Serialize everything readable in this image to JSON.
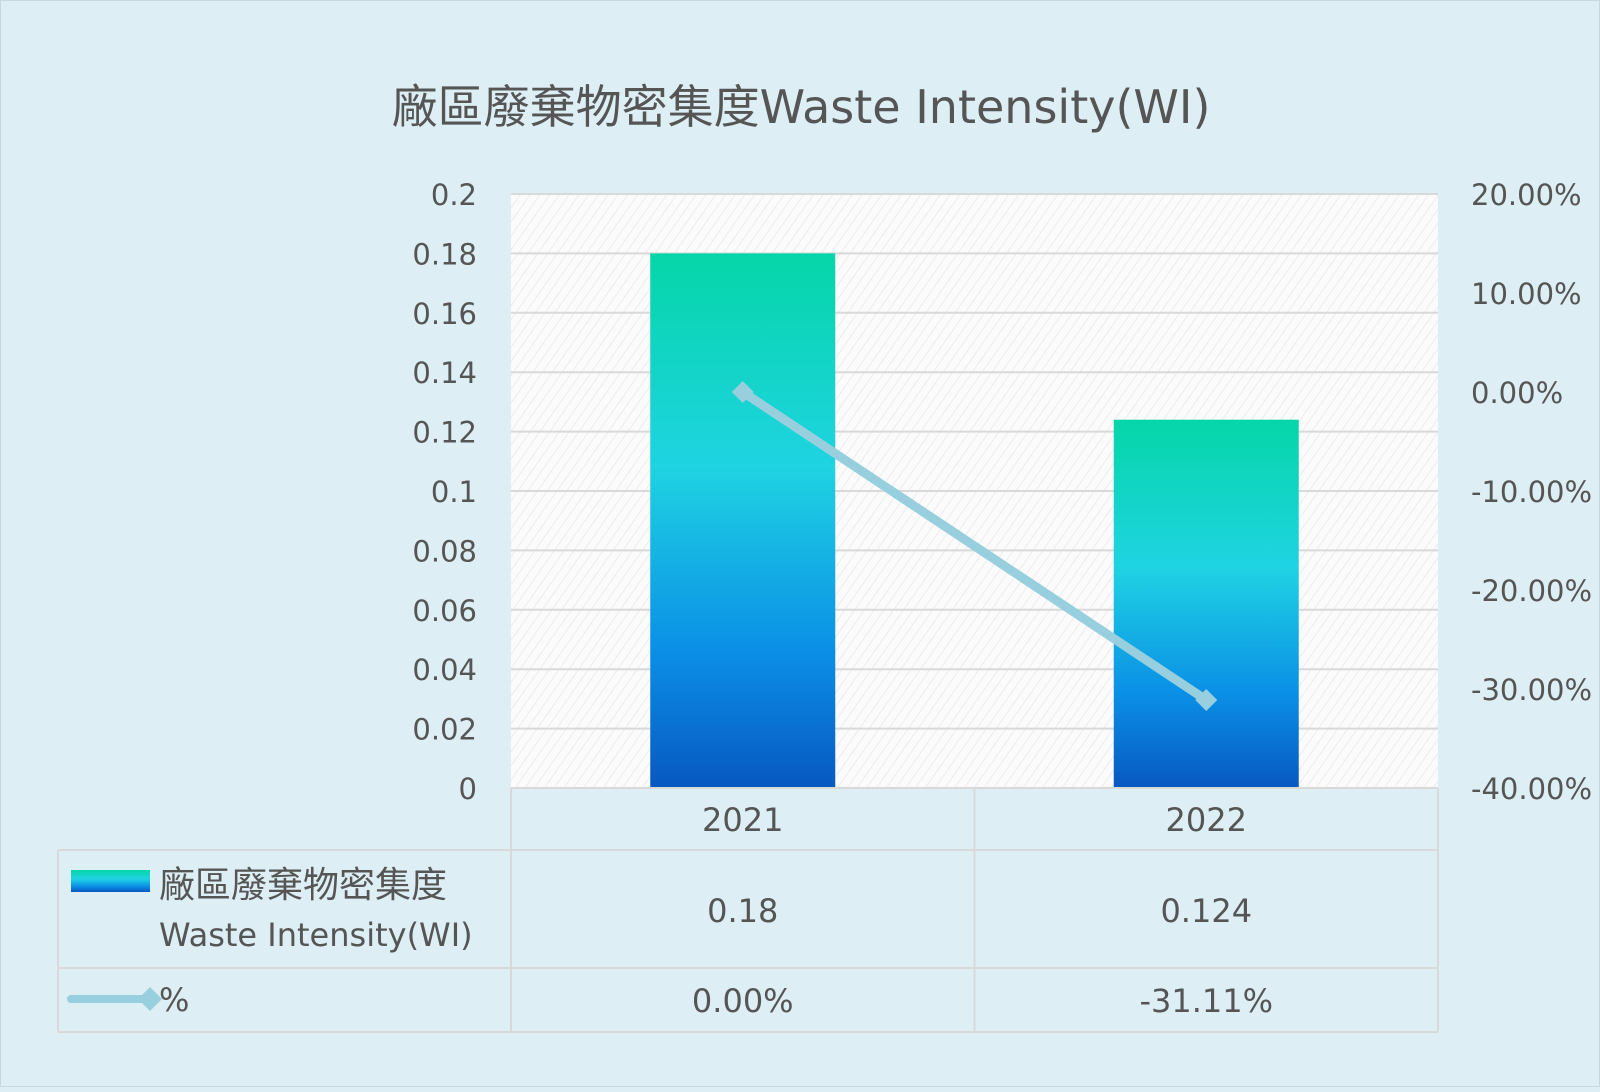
{
  "chart_data": {
    "type": "bar",
    "title": "廠區廢棄物密集度Waste Intensity(WI)",
    "categories": [
      "2021",
      "2022"
    ],
    "series": [
      {
        "name": "廠區廢棄物密集度 Waste Intensity(WI)",
        "name_lines": [
          "廠區廢棄物密集度",
          "Waste Intensity(WI)"
        ],
        "type": "bar",
        "axis": "left",
        "values": [
          0.18,
          0.124
        ],
        "value_labels": [
          "0.18",
          "0.124"
        ],
        "color_top": "#05d6a8",
        "color_mid": "#1fd3e2",
        "color_bottom": "#0858c0"
      },
      {
        "name": "%",
        "type": "line",
        "axis": "right",
        "values": [
          0.0,
          -31.11
        ],
        "value_labels": [
          "0.00%",
          "-31.11%"
        ],
        "color": "#97cfde"
      }
    ],
    "y_left": {
      "min": 0,
      "max": 0.2,
      "step": 0.02,
      "tick_labels": [
        "0",
        "0.02",
        "0.04",
        "0.06",
        "0.08",
        "0.1",
        "0.12",
        "0.14",
        "0.16",
        "0.18",
        "0.2"
      ]
    },
    "y_right": {
      "min": -40,
      "max": 20,
      "step": 10,
      "tick_labels": [
        "-40.00%",
        "-30.00%",
        "-20.00%",
        "-10.00%",
        "0.00%",
        "10.00%",
        "20.00%"
      ]
    },
    "grid": true,
    "legend": "data-table",
    "colors": {
      "background": "#ddeef4",
      "plot": "#fbfbfb",
      "grid": "#d9d9d9",
      "text": "#555555"
    }
  }
}
